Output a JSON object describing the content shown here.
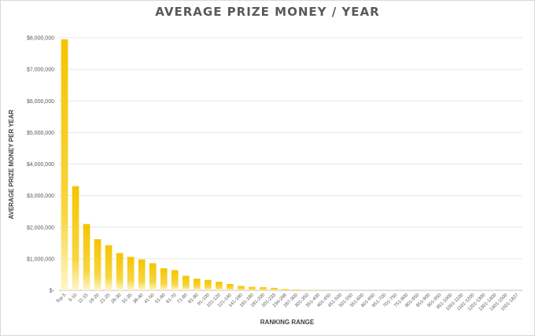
{
  "chart_data": {
    "type": "bar",
    "title": "AVERAGE PRIZE MONEY / YEAR",
    "xlabel": "RANKING RANGE",
    "ylabel": "AVERAGE PRIZE MONEY PER YEAR",
    "ylim": [
      0,
      8000000
    ],
    "yticks": [
      "$-",
      "$1,000,000",
      "$2,000,000",
      "$3,000,000",
      "$4,000,000",
      "$5,000,000",
      "$6,000,000",
      "$7,000,000",
      "$8,000,000"
    ],
    "grid": true,
    "bar_color": "#f5c400",
    "categories": [
      "Top 5",
      "5-10",
      "11-15",
      "16-20",
      "21-25",
      "26-30",
      "31-35",
      "36-40",
      "41-50",
      "51-60",
      "61-70",
      "71-80",
      "81-90",
      "91-100",
      "101-120",
      "121-140",
      "141-160",
      "161-180",
      "181-200",
      "201-233",
      "234-266",
      "267-300",
      "301-350",
      "351-400",
      "401-450",
      "451-500",
      "501-550",
      "551-600",
      "601-650",
      "651-700",
      "701-750",
      "751-800",
      "801-850",
      "851-900",
      "901-950",
      "951-1000",
      "1001-1100",
      "1101-1200",
      "1201-1300",
      "1301-1400",
      "1401-1500",
      "1501-1827"
    ],
    "values": [
      7950000,
      3300000,
      2100000,
      1620000,
      1430000,
      1180000,
      1060000,
      980000,
      860000,
      700000,
      640000,
      460000,
      370000,
      330000,
      270000,
      200000,
      140000,
      110000,
      100000,
      80000,
      40000,
      25000,
      15000,
      8000,
      5000,
      3500,
      2500,
      1800,
      1300,
      1000,
      800,
      600,
      500,
      400,
      300,
      250,
      200,
      150,
      100,
      80,
      60,
      40
    ]
  }
}
